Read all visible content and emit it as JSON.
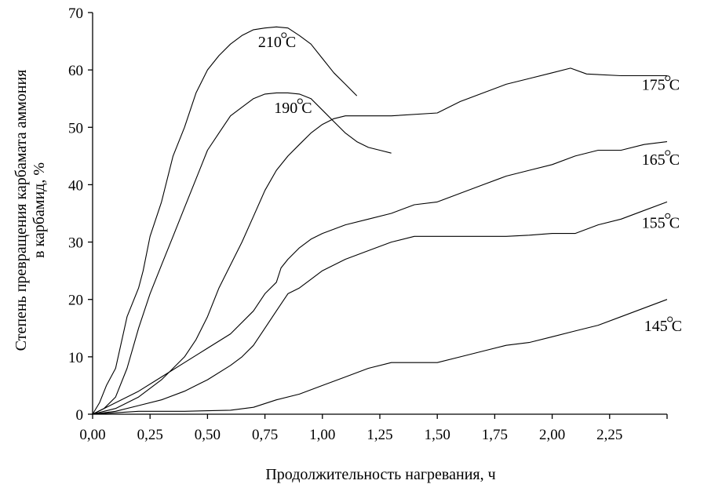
{
  "chart_data": {
    "type": "line",
    "title": "",
    "xlabel": "Продолжительность нагревания, ч",
    "ylabel": [
      "Степень превращения карбамата аммония",
      "в карбамид, %"
    ],
    "xlim": [
      0,
      2.5
    ],
    "ylim": [
      0,
      70
    ],
    "x_ticks": [
      0,
      0.25,
      0.5,
      0.75,
      1.0,
      1.25,
      1.5,
      1.75,
      2.0,
      2.25
    ],
    "x_tick_labels": [
      "0,00",
      "0,25",
      "0,50",
      "0,75",
      "1,00",
      "1,25",
      "1,50",
      "1,75",
      "2,00",
      "2,25"
    ],
    "y_ticks": [
      0,
      10,
      20,
      30,
      40,
      50,
      60,
      70
    ],
    "y_tick_labels": [
      "0",
      "10",
      "20",
      "30",
      "40",
      "50",
      "60",
      "70"
    ],
    "grid": false,
    "legend": "none",
    "series": [
      {
        "name": "210°C",
        "label_text": "210",
        "label_unit": "C",
        "label_at": [
          0.72,
          64
        ],
        "x": [
          0,
          0.03,
          0.06,
          0.1,
          0.15,
          0.2,
          0.22,
          0.25,
          0.3,
          0.35,
          0.4,
          0.45,
          0.5,
          0.55,
          0.6,
          0.65,
          0.7,
          0.75,
          0.8,
          0.85,
          0.9,
          0.95,
          1.0,
          1.05,
          1.1,
          1.15
        ],
        "y": [
          0,
          2,
          5,
          8,
          17,
          22,
          25,
          31,
          37,
          45,
          50,
          56,
          60,
          62.5,
          64.5,
          66,
          67,
          67.3,
          67.5,
          67.3,
          66,
          64.5,
          62,
          59.5,
          57.5,
          55.5
        ]
      },
      {
        "name": "190°C",
        "label_text": "190",
        "label_unit": "C",
        "label_at": [
          0.79,
          52.5
        ],
        "x": [
          0,
          0.05,
          0.1,
          0.15,
          0.2,
          0.25,
          0.3,
          0.35,
          0.4,
          0.45,
          0.5,
          0.55,
          0.6,
          0.65,
          0.7,
          0.75,
          0.8,
          0.85,
          0.9,
          0.95,
          1.0,
          1.05,
          1.1,
          1.15,
          1.2,
          1.25,
          1.3
        ],
        "y": [
          0,
          1,
          3,
          8,
          15,
          21,
          26,
          31,
          36,
          41,
          46,
          49,
          52,
          53.5,
          55,
          55.8,
          56,
          56,
          55.8,
          55,
          53,
          51,
          49,
          47.5,
          46.5,
          46,
          45.5
        ]
      },
      {
        "name": "175°C",
        "label_text": "175",
        "label_unit": "C",
        "label_at": [
          2.39,
          56.5
        ],
        "x": [
          0,
          0.05,
          0.1,
          0.2,
          0.3,
          0.35,
          0.4,
          0.45,
          0.5,
          0.55,
          0.6,
          0.65,
          0.7,
          0.75,
          0.8,
          0.85,
          0.9,
          0.95,
          1.0,
          1.05,
          1.1,
          1.3,
          1.5,
          1.6,
          1.7,
          1.8,
          1.9,
          2.0,
          2.08,
          2.15,
          2.3,
          2.5
        ],
        "y": [
          0,
          0.5,
          1,
          3,
          6,
          8,
          10,
          13,
          17,
          22,
          26,
          30,
          34.5,
          39,
          42.5,
          45,
          47,
          49,
          50.5,
          51.5,
          52,
          52,
          52.5,
          54.5,
          56,
          57.5,
          58.5,
          59.5,
          60.3,
          59.3,
          59,
          59
        ]
      },
      {
        "name": "165°C",
        "label_text": "165",
        "label_unit": "C",
        "label_at": [
          2.39,
          43.5
        ],
        "x": [
          0,
          0.05,
          0.1,
          0.2,
          0.3,
          0.4,
          0.5,
          0.6,
          0.7,
          0.75,
          0.8,
          0.82,
          0.85,
          0.9,
          0.95,
          1.0,
          1.1,
          1.2,
          1.3,
          1.4,
          1.5,
          1.6,
          1.7,
          1.8,
          1.9,
          2.0,
          2.1,
          2.2,
          2.3,
          2.4,
          2.5
        ],
        "y": [
          0,
          1,
          2,
          4,
          6.5,
          9,
          11.5,
          14,
          18,
          21,
          23,
          25.5,
          27,
          29,
          30.5,
          31.5,
          33,
          34,
          35,
          36.5,
          37,
          38.5,
          40,
          41.5,
          42.5,
          43.5,
          45,
          46,
          46,
          47,
          47.5
        ]
      },
      {
        "name": "155°C",
        "label_text": "155",
        "label_unit": "C",
        "label_at": [
          2.39,
          32.5
        ],
        "x": [
          0,
          0.1,
          0.2,
          0.3,
          0.4,
          0.5,
          0.6,
          0.65,
          0.7,
          0.75,
          0.8,
          0.85,
          0.9,
          0.95,
          1.0,
          1.1,
          1.2,
          1.3,
          1.4,
          1.5,
          1.6,
          1.7,
          1.8,
          1.9,
          2.0,
          2.1,
          2.2,
          2.3,
          2.4,
          2.5
        ],
        "y": [
          0,
          0.5,
          1.5,
          2.5,
          4,
          6,
          8.5,
          10,
          12,
          15,
          18,
          21,
          22,
          23.5,
          25,
          27,
          28.5,
          30,
          31,
          31,
          31,
          31,
          31,
          31.2,
          31.5,
          31.5,
          33,
          34,
          35.5,
          37
        ]
      },
      {
        "name": "145°C",
        "label_text": "145",
        "label_unit": "C",
        "label_at": [
          2.4,
          14.5
        ],
        "x": [
          0,
          0.2,
          0.4,
          0.6,
          0.7,
          0.8,
          0.9,
          1.0,
          1.1,
          1.2,
          1.3,
          1.4,
          1.5,
          1.6,
          1.7,
          1.8,
          1.9,
          2.0,
          2.1,
          2.2,
          2.3,
          2.4,
          2.5
        ],
        "y": [
          0,
          0.5,
          0.5,
          0.7,
          1.2,
          2.5,
          3.5,
          5,
          6.5,
          8,
          9,
          9,
          9,
          10,
          11,
          12,
          12.5,
          13.5,
          14.5,
          15.5,
          17,
          18.5,
          20
        ]
      }
    ]
  }
}
